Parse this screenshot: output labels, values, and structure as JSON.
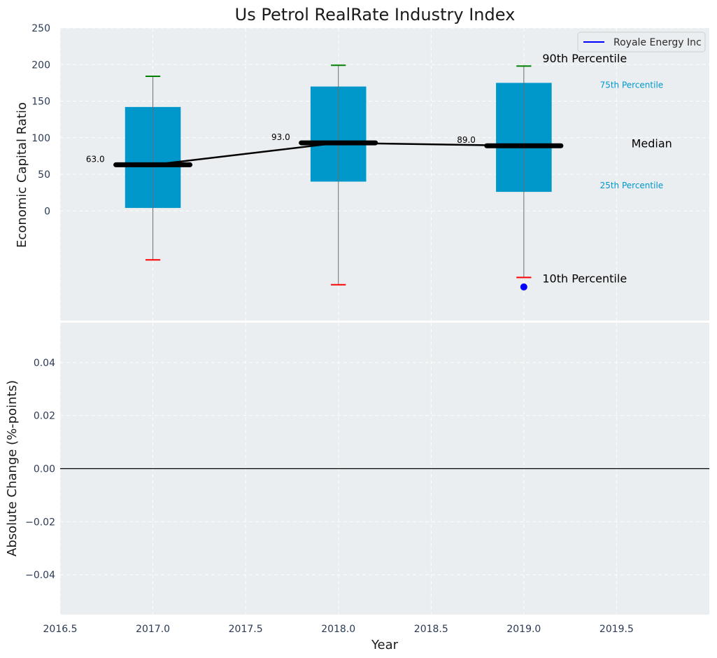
{
  "chart_data": [
    {
      "type": "box",
      "title": "Us Petrol RealRate Industry Index",
      "ylabel": "Economic Capital Ratio",
      "xlim": [
        2016.5,
        2020.0
      ],
      "ylim": [
        -150,
        250
      ],
      "yticks": [
        0,
        50,
        100,
        150,
        200,
        250
      ],
      "grid": true,
      "legend": {
        "placement": "top-right",
        "entries": [
          {
            "label": "Royale Energy Inc",
            "color": "#0000ff"
          }
        ]
      },
      "box_color": "#0098cb",
      "boxes": [
        {
          "x": 2017.0,
          "p10": -67,
          "p25": 4,
          "median": 63,
          "p75": 142,
          "p90": 184,
          "label": "63.0"
        },
        {
          "x": 2018.0,
          "p10": -101,
          "p25": 40,
          "median": 93,
          "p75": 170,
          "p90": 199,
          "label": "93.0"
        },
        {
          "x": 2019.0,
          "p10": -91,
          "p25": 26,
          "median": 89,
          "p75": 175,
          "p90": 198,
          "label": "89.0"
        }
      ],
      "median_line": {
        "x": [
          2017.0,
          2018.0,
          2019.0
        ],
        "y": [
          63,
          93,
          89
        ]
      },
      "company_points": [
        {
          "x": 2019.0,
          "y": -104,
          "color": "#0000ff"
        }
      ],
      "annotations": {
        "p90": {
          "text": "90th Percentile",
          "x": 2019.1,
          "y": 203
        },
        "p75": {
          "text": "75th Percentile",
          "x": 2019.41,
          "y": 168
        },
        "median": {
          "text": "Median",
          "x": 2019.58,
          "y": 87
        },
        "p25": {
          "text": "25th Percentile",
          "x": 2019.41,
          "y": 31
        },
        "p10": {
          "text": "10th Percentile",
          "x": 2019.1,
          "y": -98
        }
      }
    },
    {
      "type": "line",
      "ylabel": "Absolute Change (%-points)",
      "xlabel": "Year",
      "xlim": [
        2016.5,
        2020.0
      ],
      "ylim": [
        -0.055,
        0.055
      ],
      "xticks": [
        2016.5,
        2017.0,
        2017.5,
        2018.0,
        2018.5,
        2019.0,
        2019.5
      ],
      "xtick_labels": [
        "2016.5",
        "2017.0",
        "2017.5",
        "2018.0",
        "2018.5",
        "2019.0",
        "2019.5"
      ],
      "yticks": [
        0.04,
        0.02,
        0.0,
        -0.02,
        -0.04
      ],
      "ytick_labels": [
        "0.04",
        "0.02",
        "0.00",
        "−0.02",
        "−0.04"
      ],
      "zero_line": 0.0,
      "grid": true,
      "series": []
    }
  ],
  "colors": {
    "axes_bg": "#eaeef0",
    "grid": "#ffffff",
    "whisker_top": "#008000",
    "whisker_bottom": "#ff0000",
    "annotation_p75": "#0098cb"
  }
}
